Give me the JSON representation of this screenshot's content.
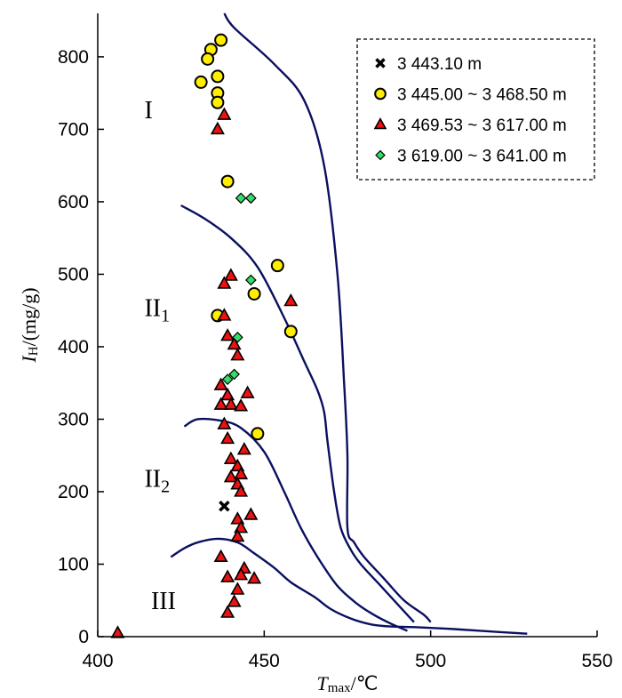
{
  "chart_data": {
    "type": "scatter",
    "title": "",
    "xlabel": {
      "main": "T",
      "sub": "max",
      "unit": "/℃"
    },
    "ylabel": {
      "main": "I",
      "sub": "H",
      "unit": "/(mg/g)"
    },
    "xlim": [
      400,
      550
    ],
    "ylim": [
      0,
      860
    ],
    "xticks": [
      "400",
      "450",
      "500",
      "550"
    ],
    "yticks": [
      "0",
      "100",
      "200",
      "300",
      "400",
      "500",
      "600",
      "700",
      "800"
    ],
    "grid": false,
    "legend_position": "top-right",
    "colors": {
      "circle": "#ffee00",
      "triangle": "#ee1111",
      "diamond": "#33dd66",
      "cross": "#000000",
      "curve": "#0a1060"
    },
    "series": [
      {
        "name": "3 443.10 m",
        "marker": "cross",
        "points": [
          [
            438,
            180
          ]
        ]
      },
      {
        "name": "3 445.00 ~ 3 468.50 m",
        "marker": "circle",
        "points": [
          [
            437,
            823
          ],
          [
            434,
            810
          ],
          [
            433,
            797
          ],
          [
            436,
            773
          ],
          [
            431,
            765
          ],
          [
            436,
            750
          ],
          [
            436,
            737
          ],
          [
            439,
            628
          ],
          [
            454,
            512
          ],
          [
            447,
            473
          ],
          [
            436,
            443
          ],
          [
            458,
            421
          ],
          [
            448,
            280
          ]
        ]
      },
      {
        "name": "3 469.53 ~ 3 617.00 m",
        "marker": "triangle",
        "points": [
          [
            438,
            720
          ],
          [
            436,
            700
          ],
          [
            440,
            498
          ],
          [
            438,
            487
          ],
          [
            458,
            463
          ],
          [
            438,
            443
          ],
          [
            439,
            415
          ],
          [
            441,
            403
          ],
          [
            442,
            388
          ],
          [
            437,
            347
          ],
          [
            445,
            336
          ],
          [
            439,
            333
          ],
          [
            437,
            320
          ],
          [
            440,
            320
          ],
          [
            443,
            318
          ],
          [
            438,
            293
          ],
          [
            439,
            273
          ],
          [
            444,
            258
          ],
          [
            440,
            245
          ],
          [
            442,
            235
          ],
          [
            443,
            224
          ],
          [
            440,
            220
          ],
          [
            442,
            210
          ],
          [
            443,
            200
          ],
          [
            446,
            168
          ],
          [
            442,
            162
          ],
          [
            443,
            150
          ],
          [
            442,
            138
          ],
          [
            437,
            110
          ],
          [
            444,
            94
          ],
          [
            443,
            85
          ],
          [
            439,
            82
          ],
          [
            447,
            80
          ],
          [
            442,
            65
          ],
          [
            441,
            48
          ],
          [
            439,
            33
          ],
          [
            406,
            5
          ]
        ]
      },
      {
        "name": "3 619.00 ~ 3 641.00 m",
        "marker": "diamond",
        "points": [
          [
            443,
            605
          ],
          [
            446,
            605
          ],
          [
            446,
            492
          ],
          [
            442,
            413
          ],
          [
            441,
            362
          ],
          [
            439,
            355
          ]
        ]
      }
    ],
    "curves": [
      {
        "name": "I/II1 boundary",
        "points": [
          [
            438,
            860
          ],
          [
            441,
            840
          ],
          [
            453,
            790
          ],
          [
            462,
            740
          ],
          [
            468,
            650
          ],
          [
            472,
            500
          ],
          [
            474,
            350
          ],
          [
            475,
            250
          ],
          [
            475,
            150
          ],
          [
            477,
            130
          ],
          [
            480,
            110
          ],
          [
            486,
            80
          ],
          [
            492,
            50
          ],
          [
            498,
            30
          ],
          [
            500,
            20
          ]
        ]
      },
      {
        "name": "II1/II2 boundary",
        "points": [
          [
            425,
            595
          ],
          [
            432,
            577
          ],
          [
            440,
            550
          ],
          [
            448,
            510
          ],
          [
            456,
            440
          ],
          [
            462,
            380
          ],
          [
            466,
            340
          ],
          [
            468,
            310
          ],
          [
            469,
            270
          ],
          [
            471,
            200
          ],
          [
            473,
            150
          ],
          [
            476,
            120
          ],
          [
            479,
            100
          ],
          [
            484,
            75
          ],
          [
            490,
            45
          ],
          [
            495,
            20
          ]
        ]
      },
      {
        "name": "II2/III boundary",
        "points": [
          [
            426,
            290
          ],
          [
            430,
            300
          ],
          [
            437,
            298
          ],
          [
            443,
            288
          ],
          [
            450,
            255
          ],
          [
            456,
            200
          ],
          [
            461,
            150
          ],
          [
            466,
            110
          ],
          [
            472,
            70
          ],
          [
            478,
            45
          ],
          [
            483,
            30
          ],
          [
            488,
            18
          ],
          [
            493,
            8
          ]
        ]
      },
      {
        "name": "III lower boundary",
        "points": [
          [
            422,
            110
          ],
          [
            426,
            122
          ],
          [
            430,
            130
          ],
          [
            436,
            135
          ],
          [
            442,
            130
          ],
          [
            447,
            115
          ],
          [
            453,
            95
          ],
          [
            458,
            75
          ],
          [
            465,
            55
          ],
          [
            470,
            38
          ],
          [
            476,
            25
          ],
          [
            482,
            17
          ],
          [
            488,
            14
          ],
          [
            496,
            13
          ],
          [
            505,
            11
          ],
          [
            515,
            8
          ],
          [
            529,
            4
          ]
        ]
      }
    ],
    "region_labels": [
      {
        "main": "I",
        "sub": "",
        "x": 414,
        "y": 715
      },
      {
        "main": "II",
        "sub": "1",
        "x": 414,
        "y": 442
      },
      {
        "main": "II",
        "sub": "2",
        "x": 414,
        "y": 207
      },
      {
        "main": "III",
        "sub": "",
        "x": 416,
        "y": 38
      }
    ]
  }
}
